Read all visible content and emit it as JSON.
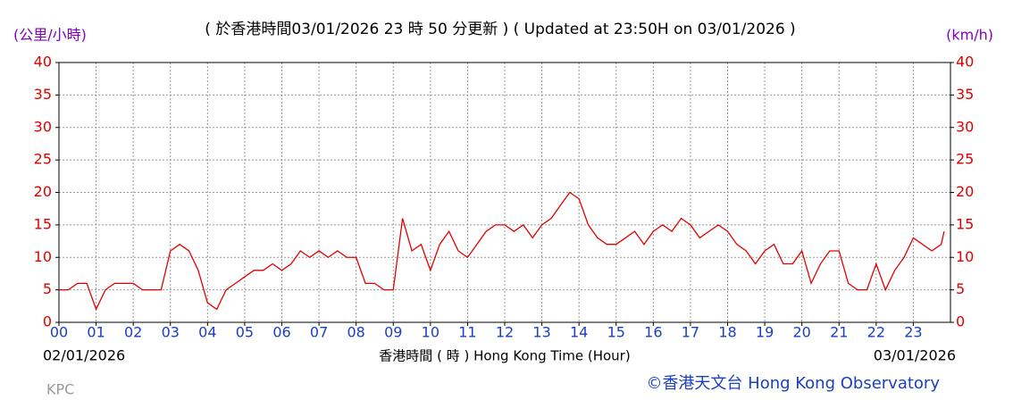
{
  "chart_data": {
    "type": "line",
    "title": "( 於香港時間03/01/2026 23 時 50 分更新 ) ( Updated at 23:50H on 03/01/2026 )",
    "y_unit_left": "(公里/小時)",
    "y_unit_right": "(km/h)",
    "x_label": "香港時間 ( 時 ) Hong Kong Time (Hour)",
    "start_date": "02/01/2026",
    "end_date": "03/01/2026",
    "station": "KPC",
    "credit": "©香港天文台 Hong Kong Observatory",
    "color": "#e00000",
    "grid": true,
    "xlim": [
      0,
      24
    ],
    "ylim": [
      0,
      40
    ],
    "yticks": [
      0,
      5,
      10,
      15,
      20,
      25,
      30,
      35,
      40
    ],
    "xticks": [
      {
        "value": 0,
        "label": "00"
      },
      {
        "value": 1,
        "label": "01"
      },
      {
        "value": 2,
        "label": "02"
      },
      {
        "value": 3,
        "label": "03"
      },
      {
        "value": 4,
        "label": "04"
      },
      {
        "value": 5,
        "label": "05"
      },
      {
        "value": 6,
        "label": "06"
      },
      {
        "value": 7,
        "label": "07"
      },
      {
        "value": 8,
        "label": "08"
      },
      {
        "value": 9,
        "label": "09"
      },
      {
        "value": 10,
        "label": "10"
      },
      {
        "value": 11,
        "label": "11"
      },
      {
        "value": 12,
        "label": "12"
      },
      {
        "value": 13,
        "label": "13"
      },
      {
        "value": 14,
        "label": "14"
      },
      {
        "value": 15,
        "label": "15"
      },
      {
        "value": 16,
        "label": "16"
      },
      {
        "value": 17,
        "label": "17"
      },
      {
        "value": 18,
        "label": "18"
      },
      {
        "value": 19,
        "label": "19"
      },
      {
        "value": 20,
        "label": "20"
      },
      {
        "value": 21,
        "label": "21"
      },
      {
        "value": 22,
        "label": "22"
      },
      {
        "value": 23,
        "label": "23"
      }
    ],
    "x": [
      0,
      0.25,
      0.5,
      0.75,
      1,
      1.25,
      1.5,
      1.75,
      2,
      2.25,
      2.5,
      2.75,
      3,
      3.25,
      3.5,
      3.75,
      4,
      4.25,
      4.5,
      4.75,
      5,
      5.25,
      5.5,
      5.75,
      6,
      6.25,
      6.5,
      6.75,
      7,
      7.25,
      7.5,
      7.75,
      8,
      8.25,
      8.5,
      8.75,
      9,
      9.25,
      9.5,
      9.75,
      10,
      10.25,
      10.5,
      10.75,
      11,
      11.25,
      11.5,
      11.75,
      12,
      12.25,
      12.5,
      12.75,
      13,
      13.25,
      13.5,
      13.75,
      14,
      14.25,
      14.5,
      14.75,
      15,
      15.25,
      15.5,
      15.75,
      16,
      16.25,
      16.5,
      16.75,
      17,
      17.25,
      17.5,
      17.75,
      18,
      18.25,
      18.5,
      18.75,
      19,
      19.25,
      19.5,
      19.75,
      20,
      20.25,
      20.5,
      20.75,
      21,
      21.25,
      21.5,
      21.75,
      22,
      22.25,
      22.5,
      22.75,
      23,
      23.25,
      23.5,
      23.75,
      23.83
    ],
    "values": [
      5,
      5,
      6,
      6,
      2,
      5,
      6,
      6,
      6,
      5,
      5,
      5,
      11,
      12,
      11,
      8,
      3,
      2,
      5,
      6,
      7,
      8,
      8,
      9,
      8,
      9,
      11,
      10,
      11,
      10,
      11,
      10,
      10,
      6,
      6,
      5,
      5,
      16,
      11,
      12,
      8,
      12,
      14,
      11,
      10,
      12,
      14,
      15,
      15,
      14,
      15,
      13,
      15,
      16,
      18,
      20,
      19,
      15,
      13,
      12,
      12,
      13,
      14,
      12,
      14,
      15,
      14,
      16,
      15,
      13,
      14,
      15,
      14,
      12,
      11,
      9,
      11,
      12,
      9,
      9,
      11,
      6,
      9,
      11,
      11,
      6,
      5,
      5,
      9,
      5,
      8,
      10,
      13,
      12,
      11,
      12,
      14
    ]
  }
}
